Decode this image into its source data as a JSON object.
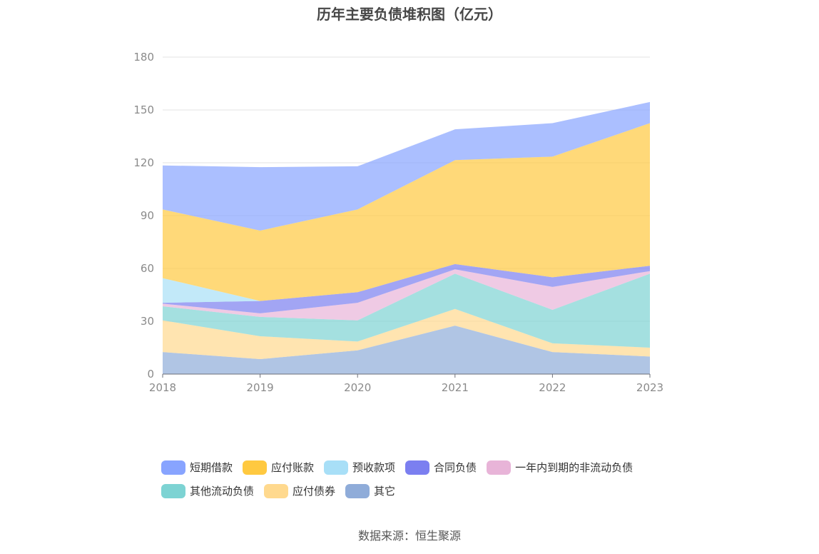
{
  "chart_data": {
    "type": "area",
    "stacked": true,
    "title": "历年主要负债堆积图（亿元）",
    "x": [
      "2018",
      "2019",
      "2020",
      "2021",
      "2022",
      "2023"
    ],
    "ylim": [
      0,
      180
    ],
    "yticks": [
      "0",
      "30",
      "60",
      "90",
      "120",
      "150",
      "180"
    ],
    "grid": true,
    "legend_position": "bottom",
    "series": [
      {
        "name": "其它",
        "color": "#8facd9",
        "values": [
          12.5,
          8.5,
          13.5,
          27.5,
          12.5,
          10
        ]
      },
      {
        "name": "应付债券",
        "color": "#ffd98e",
        "values": [
          18,
          13,
          5,
          9.5,
          5,
          5
        ]
      },
      {
        "name": "其他流动负债",
        "color": "#7dd3d3",
        "values": [
          8,
          11,
          12,
          20,
          19,
          42
        ]
      },
      {
        "name": "一年内到期的非流动负债",
        "color": "#e8b4d8",
        "values": [
          1.5,
          2,
          10,
          2.5,
          13,
          1.5
        ]
      },
      {
        "name": "合同负债",
        "color": "#7b7ff0",
        "values": [
          0.5,
          7,
          6,
          3,
          5.5,
          3
        ]
      },
      {
        "name": "预收款项",
        "color": "#a8dff7",
        "values": [
          14,
          0,
          0,
          0,
          0,
          0
        ]
      },
      {
        "name": "应付账款",
        "color": "#ffc940",
        "values": [
          39,
          40,
          47,
          59,
          68.5,
          81
        ]
      },
      {
        "name": "短期借款",
        "color": "#88a4ff",
        "values": [
          25,
          36,
          24.5,
          17.5,
          19,
          12
        ]
      }
    ],
    "legend_order": [
      "短期借款",
      "应付账款",
      "预收款项",
      "合同负债",
      "一年内到期的非流动负债",
      "其他流动负债",
      "应付债券",
      "其它"
    ],
    "source": "数据来源：恒生聚源"
  }
}
